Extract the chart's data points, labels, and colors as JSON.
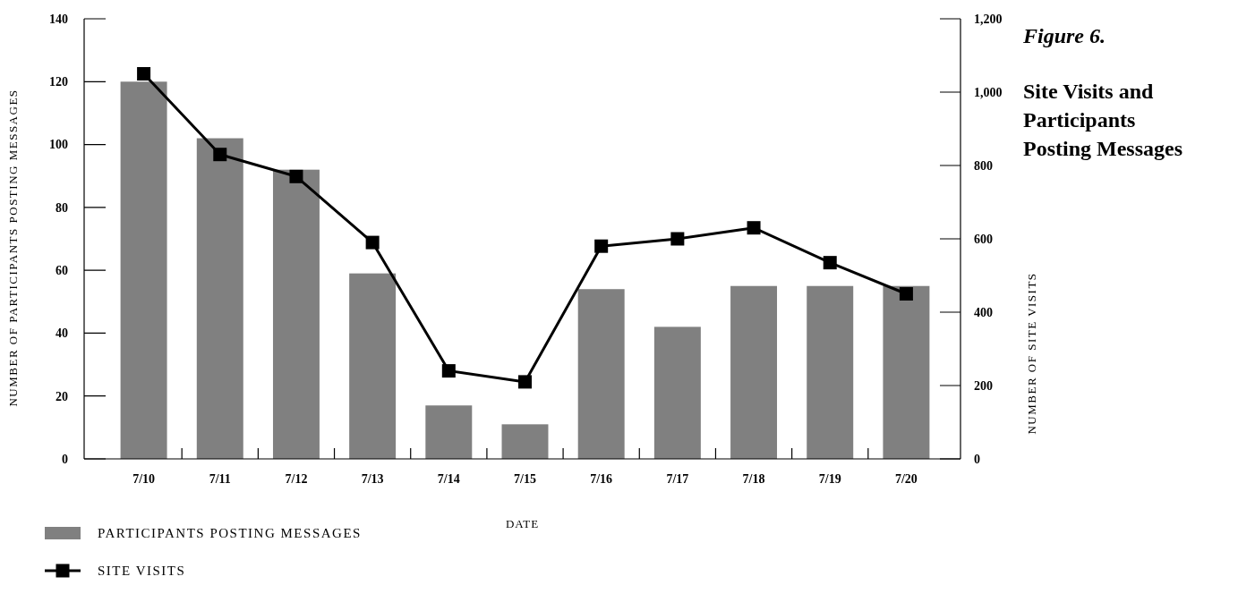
{
  "chart_data": {
    "type": "bar",
    "title": "Figure 6.",
    "subtitle": "Site Visits and Participants Posting Messages",
    "xlabel": "DATE",
    "ylabel": "NUMBER OF PARTICIPANTS POSTING MESSAGES",
    "y2label": "NUMBER OF SITE VISITS",
    "categories": [
      "7/10",
      "7/11",
      "7/12",
      "7/13",
      "7/14",
      "7/15",
      "7/16",
      "7/17",
      "7/18",
      "7/19",
      "7/20"
    ],
    "series": [
      {
        "name": "PARTICIPANTS POSTING MESSAGES",
        "color": "#808080",
        "values": [
          120,
          102,
          92,
          59,
          17,
          11,
          54,
          42,
          55,
          55,
          55
        ]
      },
      {
        "name": "SITE VISITS",
        "type": "line",
        "axis": "y2",
        "color": "#000000",
        "marker": "square",
        "values": [
          1050,
          830,
          770,
          590,
          240,
          210,
          580,
          600,
          630,
          535,
          450
        ]
      }
    ],
    "ylim": [
      0,
      140
    ],
    "yticks": [
      0,
      20,
      40,
      60,
      80,
      100,
      120,
      140
    ],
    "y2lim": [
      0,
      1200
    ],
    "y2ticks": [
      0,
      {
        "value": 200,
        "label": "200"
      },
      {
        "value": 400,
        "label": "400"
      },
      {
        "value": 600,
        "label": "600"
      },
      {
        "value": 800,
        "label": "800"
      },
      {
        "value": 1000,
        "label": "1,000"
      },
      {
        "value": 1200,
        "label": "1,200"
      }
    ],
    "grid": false,
    "legend": "bottom"
  }
}
